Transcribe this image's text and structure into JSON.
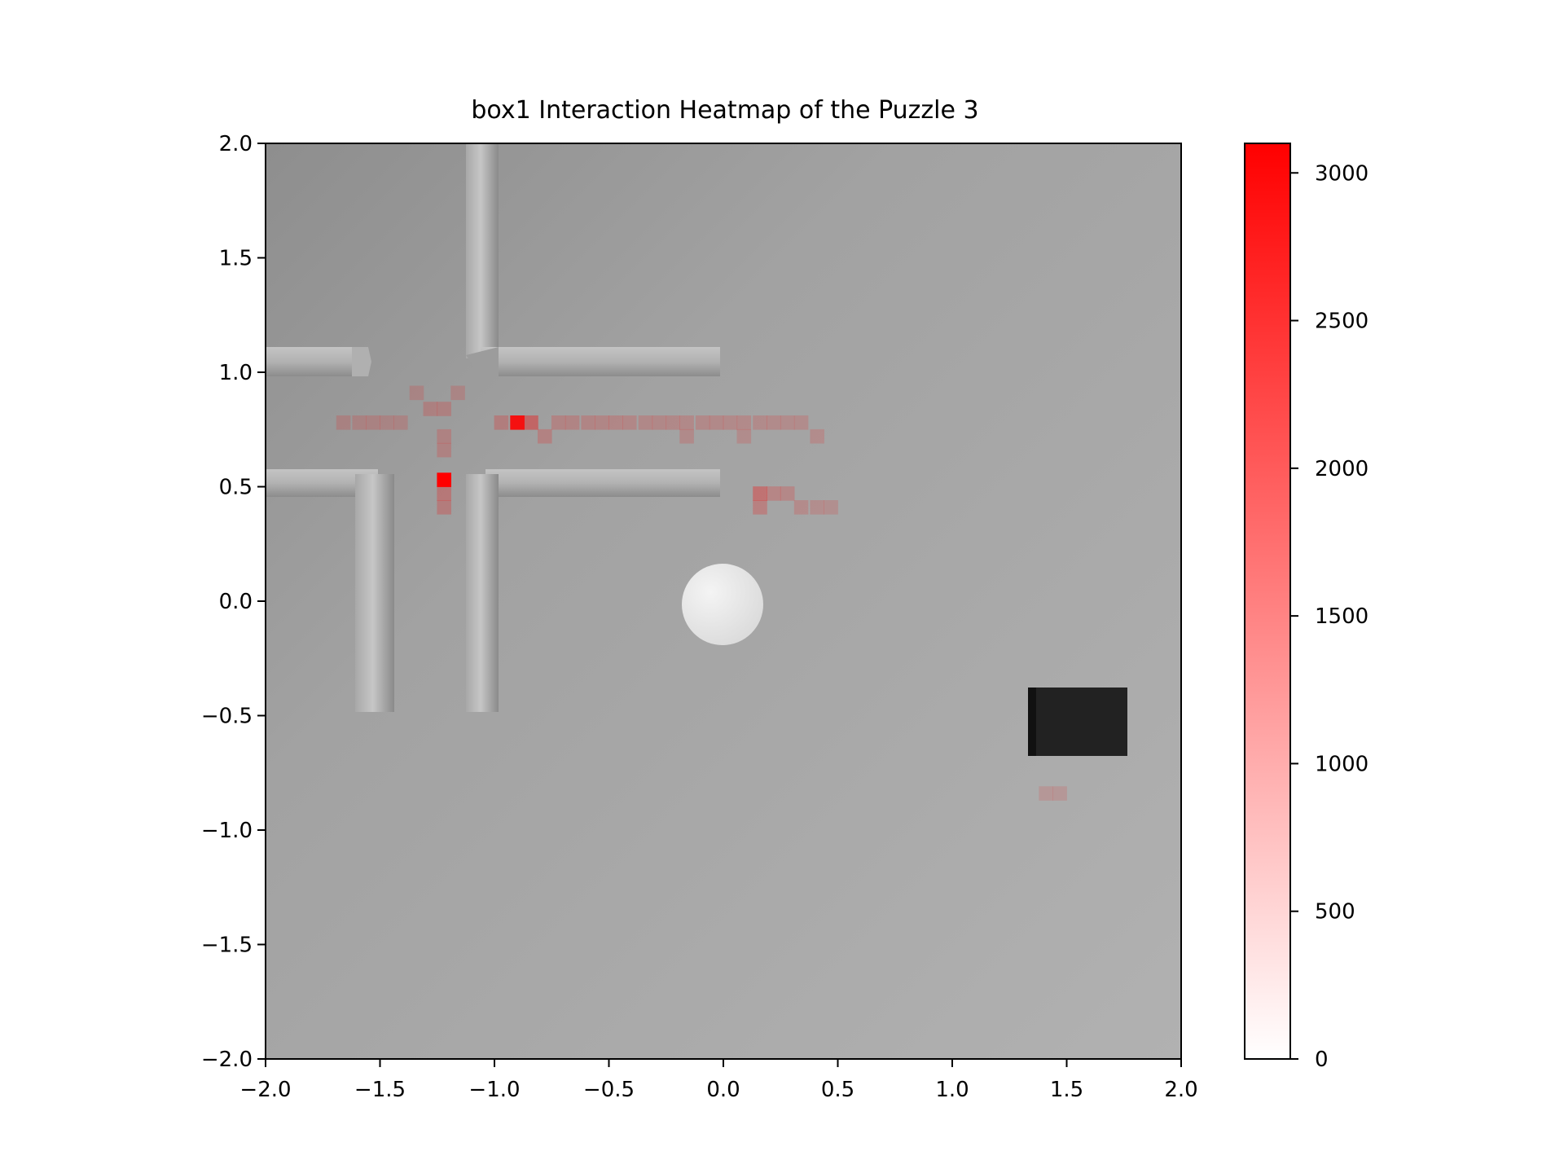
{
  "chart_data": {
    "type": "heatmap",
    "title": "box1 Interaction Heatmap of the Puzzle 3",
    "xlabel": "",
    "ylabel": "",
    "xlim": [
      -2.0,
      2.0
    ],
    "ylim": [
      -2.0,
      2.0
    ],
    "x_ticks": [
      "−2.0",
      "−1.5",
      "−1.0",
      "−0.5",
      "0.0",
      "0.5",
      "1.0",
      "1.5",
      "2.0"
    ],
    "y_ticks": [
      "2.0",
      "1.5",
      "1.0",
      "0.5",
      "0.0",
      "−0.5",
      "−1.0",
      "−1.5",
      "−2.0"
    ],
    "colorbar": {
      "range": [
        0,
        3100
      ],
      "ticks": [
        "0",
        "500",
        "1000",
        "1500",
        "2000",
        "2500",
        "3000"
      ],
      "color_low": "#ffffff",
      "color_high": "#ff0000"
    },
    "background": "top-down render of puzzle scene: grey floor, cross-shaped wall corridor at upper-left, white sphere at center, black box at lower-right",
    "cell_size": 0.0625,
    "cells": [
      {
        "x": -0.9,
        "y": 0.78,
        "v": 2750
      },
      {
        "x": -0.84,
        "y": 0.78,
        "v": 900
      },
      {
        "x": -0.97,
        "y": 0.78,
        "v": 350
      },
      {
        "x": -0.78,
        "y": 0.72,
        "v": 300
      },
      {
        "x": -0.72,
        "y": 0.78,
        "v": 250
      },
      {
        "x": -0.66,
        "y": 0.78,
        "v": 250
      },
      {
        "x": -0.59,
        "y": 0.78,
        "v": 230
      },
      {
        "x": -0.53,
        "y": 0.78,
        "v": 220
      },
      {
        "x": -0.47,
        "y": 0.78,
        "v": 220
      },
      {
        "x": -0.41,
        "y": 0.78,
        "v": 220
      },
      {
        "x": -0.34,
        "y": 0.78,
        "v": 200
      },
      {
        "x": -0.28,
        "y": 0.78,
        "v": 200
      },
      {
        "x": -0.22,
        "y": 0.78,
        "v": 200
      },
      {
        "x": -0.16,
        "y": 0.78,
        "v": 190
      },
      {
        "x": -0.09,
        "y": 0.78,
        "v": 200
      },
      {
        "x": -0.03,
        "y": 0.78,
        "v": 190
      },
      {
        "x": 0.03,
        "y": 0.78,
        "v": 180
      },
      {
        "x": 0.09,
        "y": 0.78,
        "v": 180
      },
      {
        "x": 0.16,
        "y": 0.78,
        "v": 170
      },
      {
        "x": 0.22,
        "y": 0.78,
        "v": 170
      },
      {
        "x": 0.28,
        "y": 0.78,
        "v": 160
      },
      {
        "x": 0.34,
        "y": 0.78,
        "v": 150
      },
      {
        "x": 0.41,
        "y": 0.72,
        "v": 150
      },
      {
        "x": -0.16,
        "y": 0.72,
        "v": 170
      },
      {
        "x": 0.09,
        "y": 0.72,
        "v": 160
      },
      {
        "x": -1.22,
        "y": 0.53,
        "v": 3100
      },
      {
        "x": -1.22,
        "y": 0.47,
        "v": 500
      },
      {
        "x": -1.22,
        "y": 0.41,
        "v": 400
      },
      {
        "x": -1.22,
        "y": 0.66,
        "v": 250
      },
      {
        "x": -1.22,
        "y": 0.72,
        "v": 250
      },
      {
        "x": -1.22,
        "y": 0.84,
        "v": 260
      },
      {
        "x": -1.28,
        "y": 0.84,
        "v": 240
      },
      {
        "x": -1.34,
        "y": 0.91,
        "v": 150
      },
      {
        "x": -1.16,
        "y": 0.91,
        "v": 150
      },
      {
        "x": -1.66,
        "y": 0.78,
        "v": 180
      },
      {
        "x": -1.59,
        "y": 0.78,
        "v": 180
      },
      {
        "x": -1.53,
        "y": 0.78,
        "v": 180
      },
      {
        "x": -1.47,
        "y": 0.78,
        "v": 160
      },
      {
        "x": -1.41,
        "y": 0.78,
        "v": 150
      },
      {
        "x": 0.16,
        "y": 0.47,
        "v": 700
      },
      {
        "x": 0.16,
        "y": 0.41,
        "v": 400
      },
      {
        "x": 0.22,
        "y": 0.47,
        "v": 300
      },
      {
        "x": 0.28,
        "y": 0.47,
        "v": 250
      },
      {
        "x": 0.34,
        "y": 0.41,
        "v": 200
      },
      {
        "x": 0.41,
        "y": 0.41,
        "v": 160
      },
      {
        "x": 0.47,
        "y": 0.41,
        "v": 120
      },
      {
        "x": 1.41,
        "y": -0.84,
        "v": 60
      },
      {
        "x": 1.47,
        "y": -0.84,
        "v": 60
      }
    ]
  }
}
